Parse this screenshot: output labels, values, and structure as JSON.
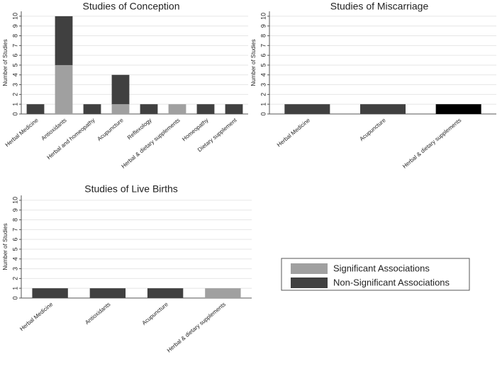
{
  "chart_data": [
    {
      "type": "stacked-bar",
      "title": "Studies of Conception",
      "y_label": "Number of Studies",
      "categories": [
        "Herbal Medicine",
        "Antioxidants",
        "Herbal and homeopathy",
        "Acupuncture",
        "Reflexology",
        "Herbal & dietary supplements",
        "Homeopathy",
        "Dietary supplement"
      ],
      "series": [
        {
          "name": "Significant Associations",
          "color": "#a0a0a0",
          "values": [
            0,
            5,
            0,
            1,
            0,
            1,
            0,
            0
          ]
        },
        {
          "name": "Non-Significant Associations",
          "color": "#404040",
          "values": [
            1,
            5,
            1,
            3,
            1,
            0,
            1,
            1
          ]
        }
      ],
      "ylim": [
        0,
        10.5
      ],
      "yticks": [
        0,
        1,
        2,
        3,
        4,
        5,
        6,
        7,
        8,
        9,
        10
      ],
      "grid": true
    },
    {
      "type": "stacked-bar",
      "title": "Studies of Miscarriage",
      "y_label": "Number of Studies",
      "categories": [
        "Herbal Medicine",
        "Acupuncture",
        "Herbal & dietary supplements"
      ],
      "series": [
        {
          "name": "Significant Associations",
          "color": "#a0a0a0",
          "values": [
            0,
            0,
            0
          ]
        },
        {
          "name": "Non-Significant Associations",
          "color": "#404040",
          "colors": [
            "#404040",
            "#404040",
            "#000000"
          ],
          "values": [
            1,
            1,
            1
          ]
        }
      ],
      "ylim": [
        0,
        10.5
      ],
      "yticks": [
        0,
        1,
        2,
        3,
        4,
        5,
        6,
        7,
        8,
        9,
        10
      ],
      "grid": true
    },
    {
      "type": "stacked-bar",
      "title": "Studies of Live Births",
      "y_label": "Number of Studies",
      "categories": [
        "Herbal Medicine",
        "Antioxidants",
        "Acupuncture",
        "Herbal & dietary supplements"
      ],
      "series": [
        {
          "name": "Significant Associations",
          "color": "#a0a0a0",
          "values": [
            0,
            0,
            0,
            1
          ]
        },
        {
          "name": "Non-Significant Associations",
          "color": "#404040",
          "values": [
            1,
            1,
            1,
            0
          ]
        }
      ],
      "ylim": [
        0,
        10.5
      ],
      "yticks": [
        0,
        1,
        2,
        3,
        4,
        5,
        6,
        7,
        8,
        9,
        10
      ],
      "grid": true
    }
  ]
}
